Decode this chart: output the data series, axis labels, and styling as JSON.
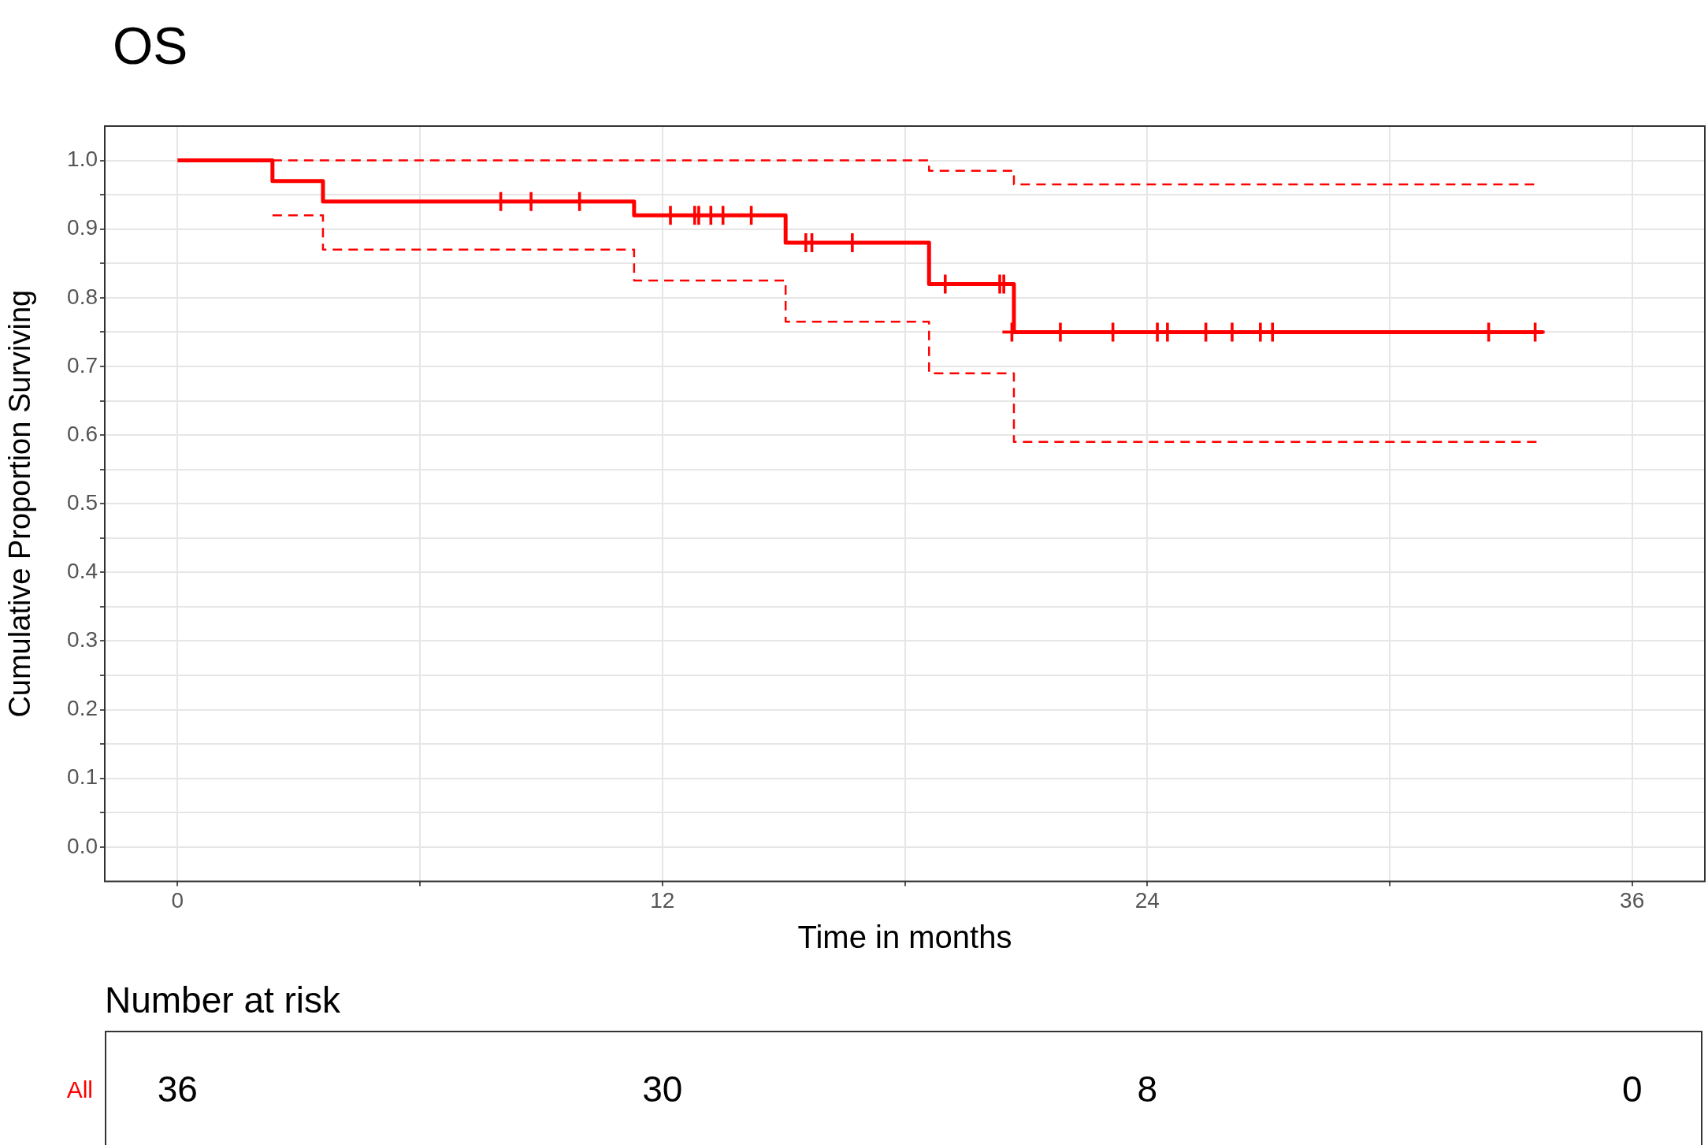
{
  "chart_data": [
    {
      "type": "step",
      "title": "OS",
      "xlabel": "Time in months",
      "ylabel": "Cumulative Proportion Surviving",
      "xlim": [
        -1.8,
        37.8
      ],
      "ylim": [
        -0.05,
        1.05
      ],
      "xticks": [
        0,
        {
          "value": 6,
          "label": null
        },
        12,
        {
          "value": 18,
          "label": null
        },
        24,
        {
          "value": 30,
          "label": null
        },
        36
      ],
      "yticks": [
        {
          "value": 0,
          "label": "0.0"
        },
        {
          "value": 0.05,
          "label": null
        },
        0.1,
        {
          "value": 0.15,
          "label": null
        },
        0.2,
        {
          "value": 0.25,
          "label": null
        },
        0.3,
        {
          "value": 0.35,
          "label": null
        },
        0.4,
        {
          "value": 0.45,
          "label": null
        },
        0.5,
        {
          "value": 0.55,
          "label": null
        },
        0.6,
        {
          "value": 0.65,
          "label": null
        },
        0.7,
        {
          "value": 0.75,
          "label": null
        },
        0.8,
        {
          "value": 0.85,
          "label": null
        },
        0.9,
        {
          "value": 0.95,
          "label": null
        },
        {
          "value": 1,
          "label": "1.0"
        }
      ],
      "grid": true,
      "legend": false,
      "series": [
        {
          "type": "step",
          "color": "#ff0000",
          "line_style": "solid",
          "x": [
            0,
            2.35,
            3.6,
            11.3,
            15.05,
            18.6,
            20.7,
            33.8
          ],
          "values": [
            1,
            0.97,
            0.94,
            0.92,
            0.88,
            0.82,
            0.75,
            0.75
          ]
        },
        {
          "type": "step",
          "color": "#ff0000",
          "line_style": "dashed",
          "x": [
            2.35,
            18.6,
            20.7,
            33.65
          ],
          "values": [
            1,
            0.985,
            0.965,
            0.965
          ]
        },
        {
          "type": "step",
          "color": "#ff0000",
          "line_style": "dashed",
          "x": [
            2.35,
            3.6,
            11.3,
            15.05,
            18.6,
            20.7,
            33.65
          ],
          "values": [
            0.92,
            0.87,
            0.825,
            0.765,
            0.69,
            0.59,
            0.59
          ]
        },
        {
          "type": "scatter",
          "color": "#ff0000",
          "marker": "cross",
          "x": [
            8,
            8.75,
            9.95,
            12.2,
            12.8,
            12.9,
            13.2,
            13.5,
            14.2,
            15.55,
            15.7,
            16.7,
            19,
            20.35,
            20.45,
            20.65,
            21.85,
            23.15,
            24.25,
            24.5,
            25.45,
            26.1,
            26.8,
            27.1,
            32.45,
            33.6
          ],
          "values": [
            0.94,
            0.94,
            0.94,
            0.92,
            0.92,
            0.92,
            0.92,
            0.92,
            0.92,
            0.88,
            0.88,
            0.88,
            0.82,
            0.82,
            0.82,
            0.75,
            0.75,
            0.75,
            0.75,
            0.75,
            0.75,
            0.75,
            0.75,
            0.75,
            0.75,
            0.75
          ]
        }
      ]
    },
    {
      "type": "other",
      "title": "Number at risk",
      "data_labels": true,
      "series": [
        {
          "name": "All",
          "color": "#ff0000",
          "values": [
            36,
            30,
            8,
            0
          ]
        }
      ]
    }
  ]
}
